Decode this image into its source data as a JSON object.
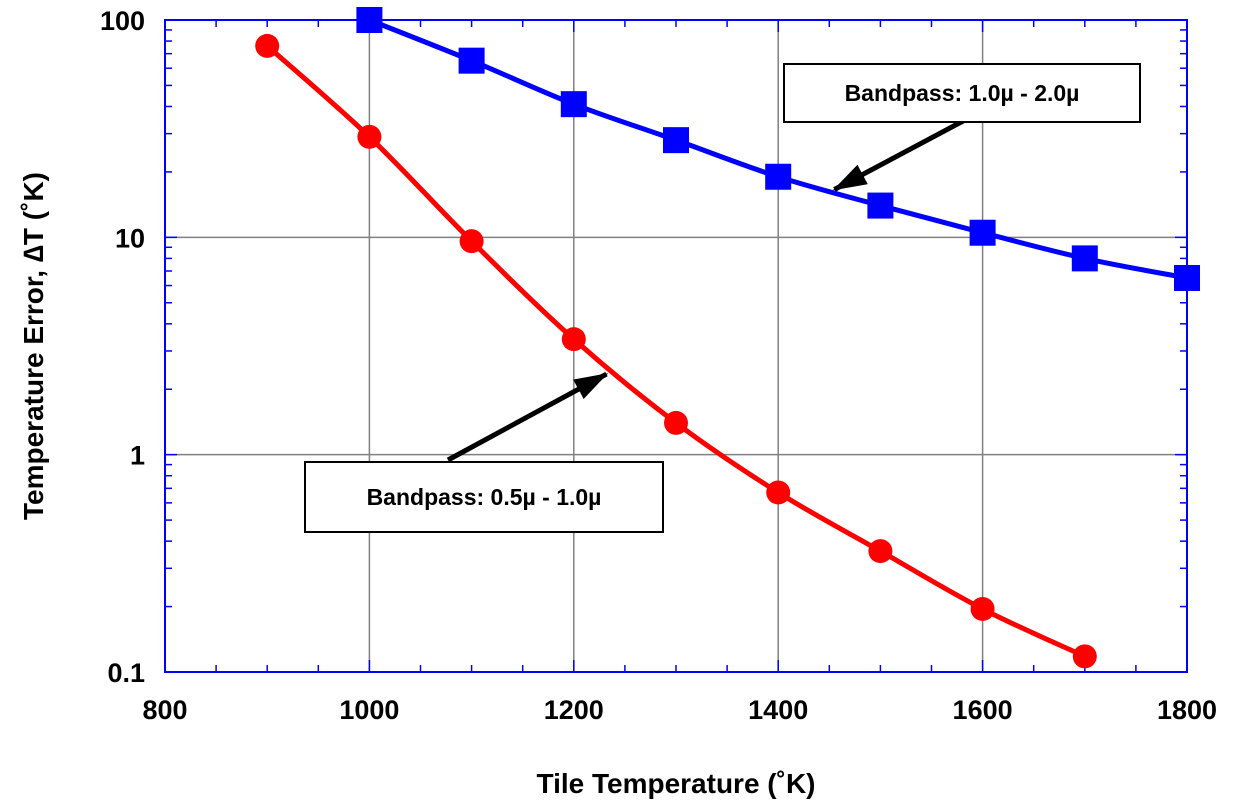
{
  "chart_data": {
    "type": "line",
    "xlabel": "Tile Temperature (˚K)",
    "ylabel": "Temperature Error, ∆T (˚K)",
    "xlim": [
      800,
      1800
    ],
    "ylim": [
      0.1,
      100
    ],
    "yscale": "log",
    "grid": true,
    "x_ticks": [
      800,
      1000,
      1200,
      1400,
      1600,
      1800
    ],
    "x_tick_labels": [
      "800",
      "1000",
      "1200",
      "1400",
      "1600",
      "1800"
    ],
    "y_ticks": [
      0.1,
      1,
      10,
      100
    ],
    "y_tick_labels": [
      "0.1",
      "1",
      "10",
      "100"
    ],
    "series": [
      {
        "name": "Bandpass: 1.0µ - 2.0µ",
        "marker": "square",
        "color": "#0000ff",
        "x": [
          1000,
          1100,
          1200,
          1300,
          1400,
          1500,
          1600,
          1700,
          1800
        ],
        "y": [
          100,
          65,
          41,
          28,
          19,
          14,
          10.5,
          8,
          6.5
        ]
      },
      {
        "name": "Bandpass: 0.5µ - 1.0µ",
        "marker": "circle",
        "color": "#ff0000",
        "x": [
          900,
          1000,
          1100,
          1200,
          1300,
          1400,
          1500,
          1600,
          1700
        ],
        "y": [
          76,
          29,
          9.6,
          3.4,
          1.4,
          0.67,
          0.36,
          0.195,
          0.118
        ]
      }
    ],
    "annotations": [
      {
        "text": "Bandpass: 1.0µ - 2.0µ",
        "series": 0
      },
      {
        "text": "Bandpass: 0.5µ - 1.0µ",
        "series": 1
      }
    ]
  },
  "colors": {
    "axis": "#0000ff",
    "grid": "#808080",
    "annotation_arrow": "#000000"
  }
}
